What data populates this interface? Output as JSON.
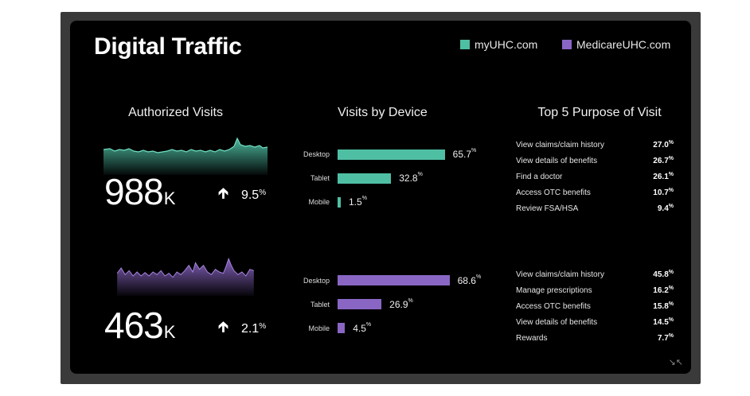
{
  "title": "Digital Traffic",
  "legend": [
    {
      "label": "myUHC.com",
      "color": "#4fbfa4"
    },
    {
      "label": "MedicareUHC.com",
      "color": "#8a66c4"
    }
  ],
  "sections": {
    "authorized": "Authorized Visits",
    "devices": "Visits by Device",
    "purpose": "Top 5 Purpose of Visit"
  },
  "rows": [
    {
      "site": "myUHC.com",
      "color": "#4fbfa4",
      "visits_value": "988",
      "visits_unit": "K",
      "change": "9.5",
      "change_unit": "%",
      "devices": [
        {
          "label": "Desktop",
          "value": 65.7,
          "text": "65.7"
        },
        {
          "label": "Tablet",
          "value": 32.8,
          "text": "32.8"
        },
        {
          "label": "Mobile",
          "value": 1.5,
          "text": "1.5"
        }
      ],
      "purposes": [
        {
          "label": "View claims/claim history",
          "value": "27.0"
        },
        {
          "label": "View details of benefits",
          "value": "26.7"
        },
        {
          "label": "Find a doctor",
          "value": "26.1"
        },
        {
          "label": "Access OTC benefits",
          "value": "10.7"
        },
        {
          "label": "Review FSA/HSA",
          "value": "9.4"
        }
      ]
    },
    {
      "site": "MedicareUHC.com",
      "color": "#8a66c4",
      "visits_value": "463",
      "visits_unit": "K",
      "change": "2.1",
      "change_unit": "%",
      "devices": [
        {
          "label": "Desktop",
          "value": 68.6,
          "text": "68.6"
        },
        {
          "label": "Tablet",
          "value": 26.9,
          "text": "26.9"
        },
        {
          "label": "Mobile",
          "value": 4.5,
          "text": "4.5"
        }
      ],
      "purposes": [
        {
          "label": "View claims/claim history",
          "value": "45.8"
        },
        {
          "label": "Manage prescriptions",
          "value": "16.2"
        },
        {
          "label": "Access OTC benefits",
          "value": "15.8"
        },
        {
          "label": "View details of benefits",
          "value": "14.5"
        },
        {
          "label": "Rewards",
          "value": "7.7"
        }
      ]
    }
  ],
  "pct_symbol": "%",
  "corner_icon": "collapse-icon"
}
